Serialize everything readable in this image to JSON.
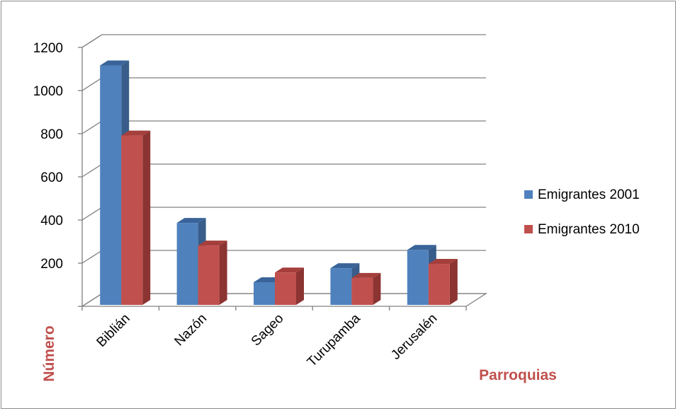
{
  "chart_data": {
    "type": "bar",
    "categories": [
      "Biblián",
      "Nazón",
      "Sageo",
      "Turupamba",
      "Jerusalén"
    ],
    "series": [
      {
        "name": "Emigrantes 2001",
        "values": [
          1110,
          380,
          105,
          170,
          255
        ]
      },
      {
        "name": "Emigrantes 2010",
        "values": [
          785,
          275,
          150,
          125,
          190
        ]
      }
    ],
    "yticks": [
      200,
      400,
      600,
      800,
      1000,
      1200
    ],
    "ylim": [
      0,
      1200
    ],
    "xlabel": "Parroquias",
    "ylabel": "Número",
    "legend": "right",
    "grid": true,
    "colors": {
      "s1_front": "#4f81bd",
      "s1_side": "#385d8a",
      "s1_top": "#3a6499",
      "s2_front": "#c0504d",
      "s2_side": "#8b3432",
      "s2_top": "#a53f3c",
      "axis_title": "#c0504d",
      "grid": "#808080"
    }
  }
}
